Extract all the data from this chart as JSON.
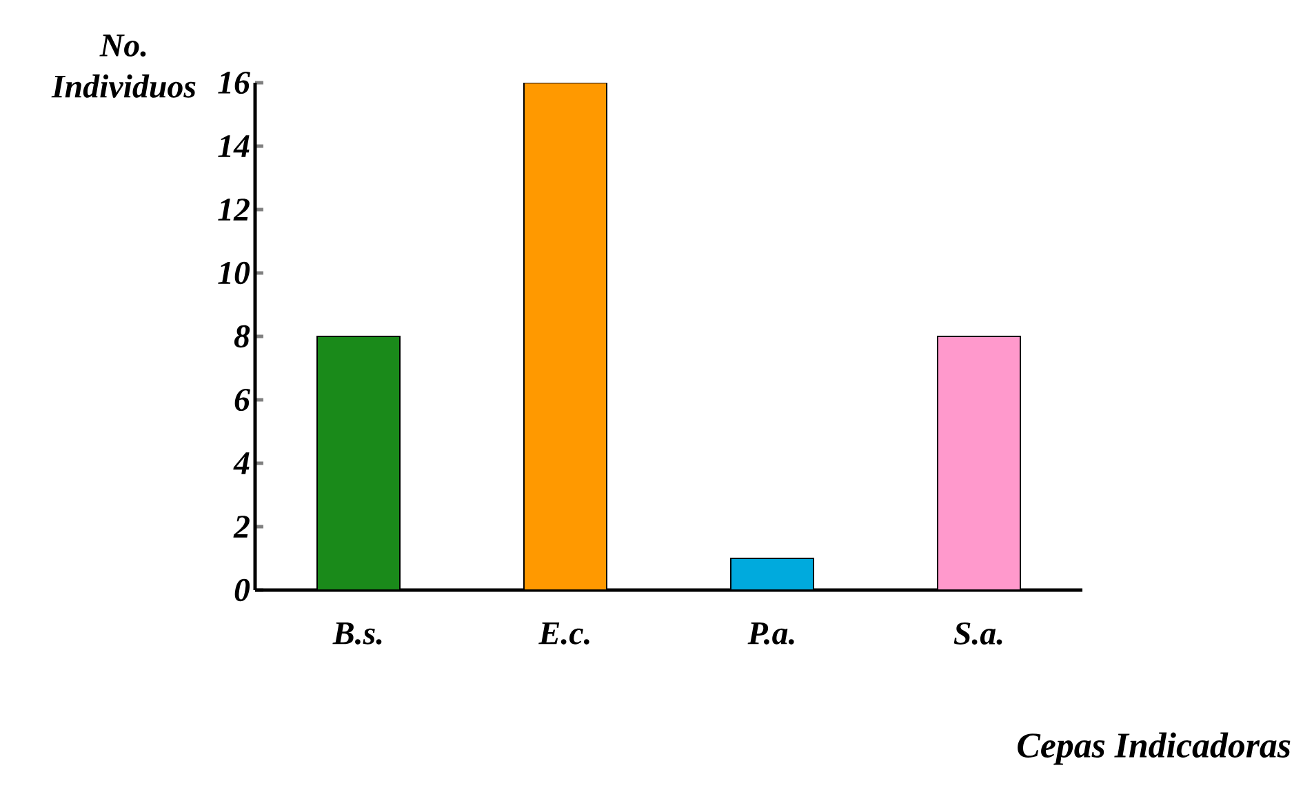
{
  "chart_data": {
    "type": "bar",
    "categories": [
      "B.s.",
      "E.c.",
      "P.a.",
      "S.a."
    ],
    "values": [
      8,
      16,
      1,
      8
    ],
    "colors": [
      "#1a8a1a",
      "#ff9900",
      "#00aadd",
      "#ff99cc"
    ],
    "ylim": [
      0,
      16
    ],
    "yticks": [
      0,
      2,
      4,
      6,
      8,
      10,
      12,
      14,
      16
    ],
    "ylabel": "No. Individuos",
    "xlabel": "Cepas Indicadoras",
    "grid": false
  }
}
